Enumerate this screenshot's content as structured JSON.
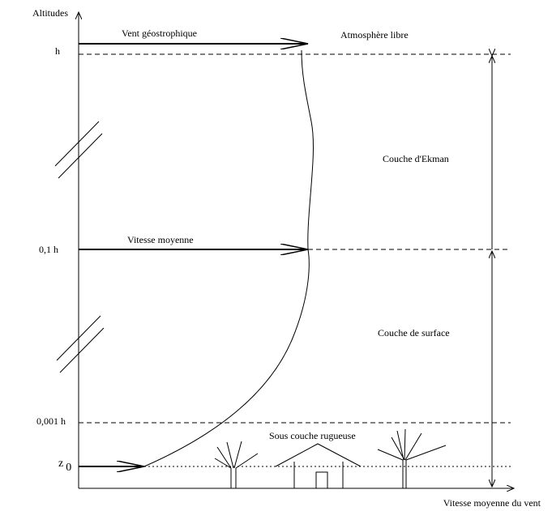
{
  "axes": {
    "y_label": "Altitudes",
    "x_label": "Vitesse moyenne du vent"
  },
  "levels": [
    {
      "label": "h"
    },
    {
      "label": "0,1 h"
    },
    {
      "label": "0,001 h"
    },
    {
      "label": "z",
      "subscript": "0"
    }
  ],
  "arrows": [
    {
      "label": "Vent géostrophique"
    },
    {
      "label": "Vitesse moyenne"
    }
  ],
  "layers": [
    {
      "label": "Atmosphère libre"
    },
    {
      "label": "Couche d'Ekman"
    },
    {
      "label": "Couche de surface"
    },
    {
      "label": "Sous couche rugueuse"
    }
  ]
}
